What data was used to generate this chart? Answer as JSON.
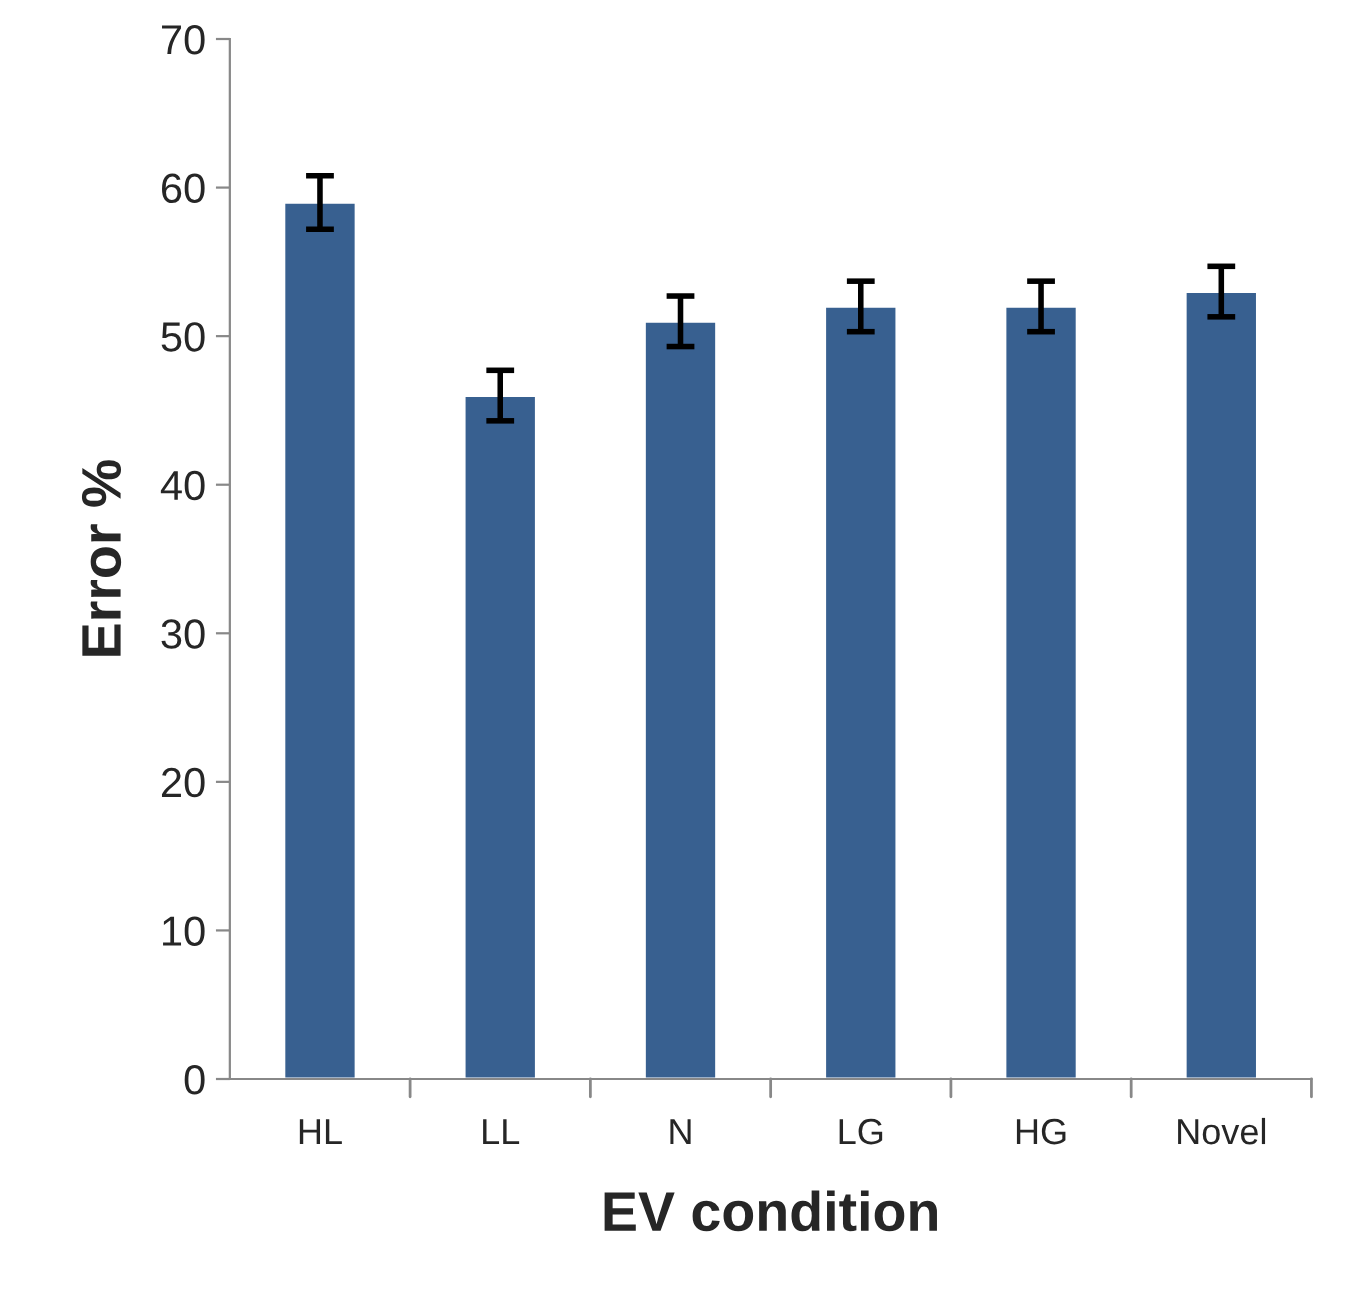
{
  "chart_data": {
    "type": "bar",
    "xlabel": "EV condition",
    "ylabel": "Error %",
    "categories": [
      "HL",
      "LL",
      "N",
      "LG",
      "HG",
      "Novel"
    ],
    "values": [
      59,
      46,
      51,
      52,
      52,
      53
    ],
    "errors": [
      1.8,
      1.7,
      1.7,
      1.7,
      1.7,
      1.7
    ],
    "color": "#386090",
    "ylim": [
      0,
      70
    ],
    "yticks": [
      0,
      10,
      20,
      30,
      40,
      50,
      60,
      70
    ],
    "grid": false,
    "legend": false
  }
}
